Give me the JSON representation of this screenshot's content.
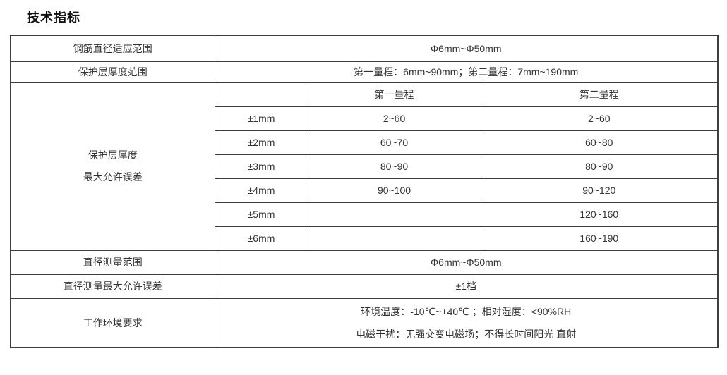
{
  "page_title": "技术指标",
  "colors": {
    "border": "#3d3d3d",
    "text": "#333333",
    "background": "#ffffff"
  },
  "table": {
    "rows": {
      "rebar_diameter_range": {
        "label": "钢筋直径适应范围",
        "value": "Φ6mm~Φ50mm"
      },
      "cover_thickness_range": {
        "label": "保护层厚度范围",
        "value": "第一量程：6mm~90mm；第二量程：7mm~190mm"
      },
      "cover_thickness_max_error": {
        "label_line1": "保护层厚度",
        "label_line2": "最大允许误差",
        "col_headers": {
          "range1": "第一量程",
          "range2": "第二量程"
        },
        "error_rows": [
          {
            "tolerance": "±1mm",
            "range1": "2~60",
            "range2": "2~60"
          },
          {
            "tolerance": "±2mm",
            "range1": "60~70",
            "range2": "60~80"
          },
          {
            "tolerance": "±3mm",
            "range1": "80~90",
            "range2": "80~90"
          },
          {
            "tolerance": "±4mm",
            "range1": "90~100",
            "range2": "90~120"
          },
          {
            "tolerance": "±5mm",
            "range1": "",
            "range2": "120~160"
          },
          {
            "tolerance": "±6mm",
            "range1": "",
            "range2": "160~190"
          }
        ]
      },
      "diameter_measure_range": {
        "label": "直径测量范围",
        "value": "Φ6mm~Φ50mm"
      },
      "diameter_max_error": {
        "label": "直径测量最大允许误差",
        "value": "±1档"
      },
      "working_environment": {
        "label": "工作环境要求",
        "value_line1": "环境温度：-10℃~+40℃ ；相对湿度：<90%RH",
        "value_line2": "电磁干扰：无强交变电磁场；不得长时间阳光 直射"
      }
    }
  }
}
